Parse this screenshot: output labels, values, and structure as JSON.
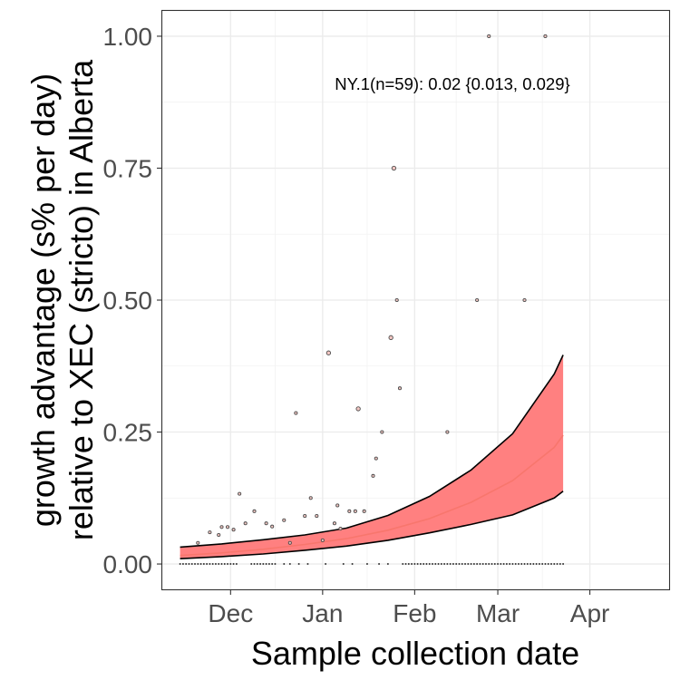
{
  "chart_data": {
    "type": "scatter",
    "xlabel": "Sample collection date",
    "ylabel_line1": "growth advantage (s% per day)",
    "ylabel_line2": "relative to XEC (stricto) in Alberta",
    "annotation": "NY.1(n=59): 0.02 {0.013, 0.029}",
    "x_ticks": [
      {
        "label": "Dec",
        "date": "2024-12-01"
      },
      {
        "label": "Jan",
        "date": "2025-01-01"
      },
      {
        "label": "Feb",
        "date": "2025-02-01"
      },
      {
        "label": "Mar",
        "date": "2025-03-01"
      },
      {
        "label": "Apr",
        "date": "2025-04-01"
      }
    ],
    "y_ticks": [
      "0.00",
      "0.25",
      "0.50",
      "0.75",
      "1.00"
    ],
    "x_range": [
      "2024-11-08",
      "2025-04-28"
    ],
    "y_range": [
      -0.048,
      1.048
    ],
    "grid": true,
    "colors": {
      "fit": "#f8766d",
      "ribbon": "#ff8080",
      "bound": "#000000",
      "point_fill": "#f4c7c3",
      "point_stroke": "#4d4d4d"
    },
    "fit": {
      "dates": [
        "2024-11-14",
        "2024-11-28",
        "2024-12-12",
        "2024-12-26",
        "2025-01-09",
        "2025-01-23",
        "2025-02-06",
        "2025-02-20",
        "2025-03-06",
        "2025-03-20",
        "2025-03-23"
      ],
      "mid": [
        0.016,
        0.021,
        0.028,
        0.037,
        0.048,
        0.064,
        0.086,
        0.117,
        0.158,
        0.221,
        0.244
      ],
      "lower": [
        0.01,
        0.014,
        0.019,
        0.026,
        0.034,
        0.045,
        0.059,
        0.075,
        0.093,
        0.125,
        0.138
      ],
      "upper": [
        0.032,
        0.038,
        0.046,
        0.055,
        0.068,
        0.092,
        0.128,
        0.178,
        0.247,
        0.36,
        0.396
      ]
    },
    "points": [
      {
        "x": "2024-11-20",
        "y": 0.04,
        "size": 1
      },
      {
        "x": "2024-11-24",
        "y": 0.06,
        "size": 1
      },
      {
        "x": "2024-11-27",
        "y": 0.055,
        "size": 1
      },
      {
        "x": "2024-11-28",
        "y": 0.07,
        "size": 1
      },
      {
        "x": "2024-11-30",
        "y": 0.07,
        "size": 1
      },
      {
        "x": "2024-12-02",
        "y": 0.065,
        "size": 1
      },
      {
        "x": "2024-12-04",
        "y": 0.133,
        "size": 1
      },
      {
        "x": "2024-12-06",
        "y": 0.077,
        "size": 1
      },
      {
        "x": "2024-12-09",
        "y": 0.1,
        "size": 1
      },
      {
        "x": "2024-12-13",
        "y": 0.077,
        "size": 1
      },
      {
        "x": "2024-12-15",
        "y": 0.071,
        "size": 1
      },
      {
        "x": "2024-12-19",
        "y": 0.083,
        "size": 1
      },
      {
        "x": "2024-12-21",
        "y": 0.04,
        "size": 1
      },
      {
        "x": "2024-12-23",
        "y": 0.286,
        "size": 1
      },
      {
        "x": "2024-12-26",
        "y": 0.091,
        "size": 1
      },
      {
        "x": "2024-12-28",
        "y": 0.125,
        "size": 1
      },
      {
        "x": "2024-12-30",
        "y": 0.091,
        "size": 1
      },
      {
        "x": "2025-01-01",
        "y": 0.045,
        "size": 1
      },
      {
        "x": "2025-01-03",
        "y": 0.4,
        "size": 2
      },
      {
        "x": "2025-01-05",
        "y": 0.077,
        "size": 1
      },
      {
        "x": "2025-01-06",
        "y": 0.111,
        "size": 1
      },
      {
        "x": "2025-01-07",
        "y": 0.067,
        "size": 1
      },
      {
        "x": "2025-01-10",
        "y": 0.1,
        "size": 1
      },
      {
        "x": "2025-01-12",
        "y": 0.1,
        "size": 1
      },
      {
        "x": "2025-01-13",
        "y": 0.294,
        "size": 2
      },
      {
        "x": "2025-01-15",
        "y": 0.1,
        "size": 1
      },
      {
        "x": "2025-01-18",
        "y": 0.167,
        "size": 1
      },
      {
        "x": "2025-01-19",
        "y": 0.2,
        "size": 1
      },
      {
        "x": "2025-01-21",
        "y": 0.25,
        "size": 1
      },
      {
        "x": "2025-01-24",
        "y": 0.429,
        "size": 2
      },
      {
        "x": "2025-01-25",
        "y": 0.75,
        "size": 2
      },
      {
        "x": "2025-01-26",
        "y": 0.5,
        "size": 1
      },
      {
        "x": "2025-01-27",
        "y": 0.333,
        "size": 1
      },
      {
        "x": "2025-02-12",
        "y": 0.25,
        "size": 1
      },
      {
        "x": "2025-02-22",
        "y": 0.5,
        "size": 1
      },
      {
        "x": "2025-02-26",
        "y": 1.0,
        "size": 1
      },
      {
        "x": "2025-03-10",
        "y": 0.5,
        "size": 1
      },
      {
        "x": "2025-03-17",
        "y": 1.0,
        "size": 1
      }
    ],
    "zero_points": {
      "ranges": [
        [
          "2024-11-14",
          "2024-12-03"
        ],
        [
          "2024-12-08",
          "2024-12-16"
        ],
        [
          "2025-01-28",
          "2025-03-23"
        ]
      ],
      "singles": [
        "2024-12-19",
        "2024-12-21",
        "2024-12-24",
        "2024-12-27",
        "2025-01-02",
        "2025-01-08",
        "2025-01-11",
        "2025-01-16",
        "2025-01-20",
        "2025-01-23"
      ]
    }
  }
}
